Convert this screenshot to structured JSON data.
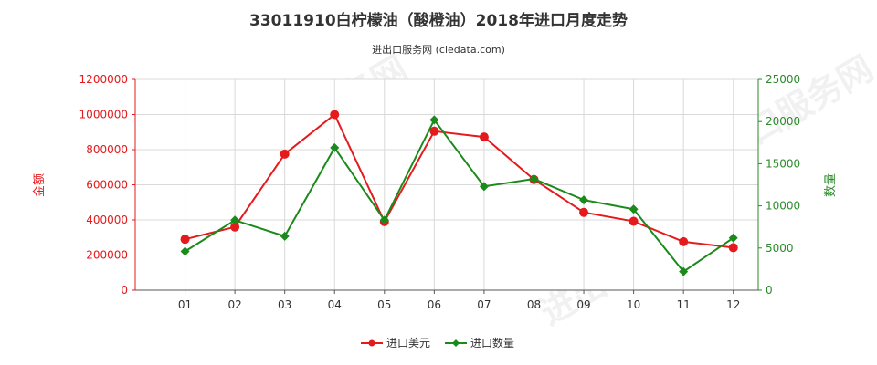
{
  "chart_data": {
    "type": "line",
    "title": "33011910白柠檬油（酸橙油）2018年进口月度走势",
    "subtitle": "进出口服务网 (ciedata.com)",
    "categories": [
      "01",
      "02",
      "03",
      "04",
      "05",
      "06",
      "07",
      "08",
      "09",
      "10",
      "11",
      "12"
    ],
    "left_axis": {
      "label": "金额",
      "range": [
        0,
        1200000
      ],
      "ticks": [
        "0",
        "200000",
        "400000",
        "600000",
        "800000",
        "1000000",
        "1200000"
      ],
      "color": "#e41a1c"
    },
    "right_axis": {
      "label": "数量",
      "range": [
        0,
        25000
      ],
      "ticks": [
        "0",
        "5000",
        "10000",
        "15000",
        "20000",
        "25000"
      ],
      "color": "#2a8a2a"
    },
    "series": [
      {
        "name": "进口美元",
        "axis": "left",
        "color": "#e41a1c",
        "marker": "circle",
        "values": [
          290000,
          360000,
          775000,
          1000000,
          390000,
          905000,
          872000,
          630000,
          443000,
          392000,
          276000,
          242000
        ]
      },
      {
        "name": "进口数量",
        "axis": "right",
        "color": "#1a8a1a",
        "marker": "diamond",
        "values": [
          4600,
          8300,
          6400,
          16900,
          8300,
          20200,
          12300,
          13200,
          10700,
          9600,
          2200,
          6200
        ]
      }
    ],
    "grid": true,
    "legend_position": "bottom-center",
    "watermark": "进出口服务网"
  }
}
